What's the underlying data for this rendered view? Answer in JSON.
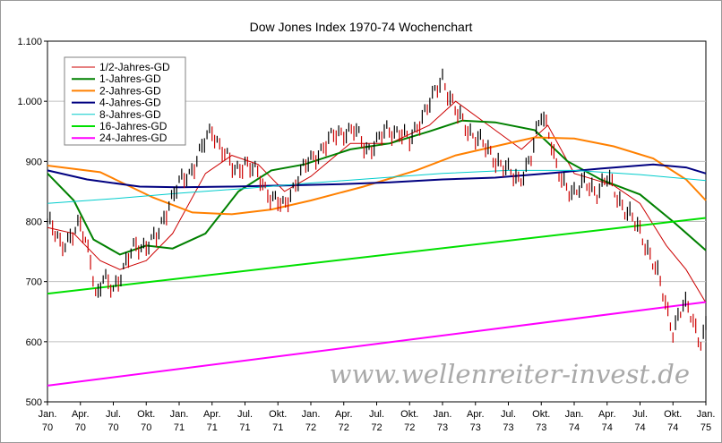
{
  "chart_data": {
    "type": "line",
    "title": "Dow Jones Index 1970-74 Wochenchart",
    "watermark": "www.wellenreiter-invest.de",
    "xlabel": "",
    "ylabel": "",
    "xlim": [
      1970.0,
      1975.0
    ],
    "ylim": [
      500,
      1100
    ],
    "y_ticks": [
      "500",
      "600",
      "700",
      "800",
      "900",
      "1.000",
      "1.100"
    ],
    "y_tick_values": [
      500,
      600,
      700,
      800,
      900,
      1000,
      1100
    ],
    "x_ticks": [
      {
        "month": "Jan.",
        "year": "70",
        "t": 1970.0
      },
      {
        "month": "Apr.",
        "year": "70",
        "t": 1970.25
      },
      {
        "month": "Jul.",
        "year": "70",
        "t": 1970.5
      },
      {
        "month": "Okt.",
        "year": "70",
        "t": 1970.75
      },
      {
        "month": "Jan.",
        "year": "71",
        "t": 1971.0
      },
      {
        "month": "Apr.",
        "year": "71",
        "t": 1971.25
      },
      {
        "month": "Jul.",
        "year": "71",
        "t": 1971.5
      },
      {
        "month": "Okt.",
        "year": "71",
        "t": 1971.75
      },
      {
        "month": "Jan.",
        "year": "72",
        "t": 1972.0
      },
      {
        "month": "Apr.",
        "year": "72",
        "t": 1972.25
      },
      {
        "month": "Jul.",
        "year": "72",
        "t": 1972.5
      },
      {
        "month": "Okt.",
        "year": "72",
        "t": 1972.75
      },
      {
        "month": "Jan.",
        "year": "73",
        "t": 1973.0
      },
      {
        "month": "Apr.",
        "year": "73",
        "t": 1973.25
      },
      {
        "month": "Jul.",
        "year": "73",
        "t": 1973.5
      },
      {
        "month": "Okt.",
        "year": "73",
        "t": 1973.75
      },
      {
        "month": "Jan.",
        "year": "74",
        "t": 1974.0
      },
      {
        "month": "Apr.",
        "year": "74",
        "t": 1974.25
      },
      {
        "month": "Jul.",
        "year": "74",
        "t": 1974.5
      },
      {
        "month": "Okt.",
        "year": "74",
        "t": 1974.75
      },
      {
        "month": "Jan.",
        "year": "75",
        "t": 1975.0
      }
    ],
    "grid": true,
    "legend_position": "top-left",
    "price_series": {
      "style": "weekly bars (high-low)",
      "color": "#000000",
      "down_color": "#cc0000",
      "x": [
        1970.0,
        1970.1,
        1970.2,
        1970.25,
        1970.33,
        1970.37,
        1970.42,
        1970.5,
        1970.58,
        1970.67,
        1970.75,
        1970.83,
        1970.92,
        1971.0,
        1971.08,
        1971.17,
        1971.25,
        1971.33,
        1971.42,
        1971.5,
        1971.58,
        1971.67,
        1971.75,
        1971.8,
        1971.85,
        1971.92,
        1972.0,
        1972.08,
        1972.17,
        1972.25,
        1972.33,
        1972.42,
        1972.5,
        1972.58,
        1972.67,
        1972.75,
        1972.83,
        1972.92,
        1973.0,
        1973.05,
        1973.1,
        1973.17,
        1973.25,
        1973.33,
        1973.42,
        1973.5,
        1973.58,
        1973.67,
        1973.75,
        1973.8,
        1973.87,
        1973.92,
        1974.0,
        1974.08,
        1974.17,
        1974.25,
        1974.33,
        1974.42,
        1974.5,
        1974.55,
        1974.62,
        1974.67,
        1974.72,
        1974.75,
        1974.83,
        1974.9,
        1974.95,
        1975.0
      ],
      "close": [
        800,
        760,
        780,
        790,
        740,
        670,
        700,
        690,
        720,
        760,
        760,
        770,
        830,
        860,
        880,
        920,
        950,
        920,
        880,
        900,
        880,
        850,
        830,
        820,
        850,
        880,
        900,
        920,
        940,
        950,
        950,
        920,
        930,
        950,
        950,
        930,
        970,
        1000,
        1040,
        1010,
        980,
        960,
        940,
        920,
        900,
        880,
        870,
        900,
        980,
        960,
        880,
        860,
        850,
        860,
        850,
        870,
        840,
        810,
        780,
        760,
        720,
        680,
        640,
        620,
        660,
        640,
        600,
        620
      ]
    },
    "series": [
      {
        "name": "1/2-Jahres-GD",
        "color": "#cc0000",
        "x": [
          1970.0,
          1970.2,
          1970.4,
          1970.55,
          1970.75,
          1970.95,
          1971.2,
          1971.4,
          1971.6,
          1971.8,
          1972.0,
          1972.3,
          1972.6,
          1972.9,
          1973.1,
          1973.35,
          1973.6,
          1973.8,
          1974.0,
          1974.3,
          1974.5,
          1974.7,
          1974.85,
          1975.0
        ],
        "y": [
          790,
          780,
          735,
          720,
          735,
          780,
          880,
          910,
          895,
          850,
          875,
          930,
          930,
          960,
          1000,
          960,
          920,
          960,
          880,
          860,
          830,
          760,
          720,
          665
        ]
      },
      {
        "name": "1-Jahres-GD",
        "color": "#008000",
        "x": [
          1970.0,
          1970.2,
          1970.35,
          1970.55,
          1970.75,
          1970.95,
          1971.2,
          1971.45,
          1971.7,
          1971.95,
          1972.3,
          1972.6,
          1972.9,
          1973.15,
          1973.4,
          1973.7,
          1973.95,
          1974.2,
          1974.5,
          1974.75,
          1975.0
        ],
        "y": [
          880,
          835,
          770,
          745,
          760,
          755,
          780,
          850,
          885,
          895,
          920,
          930,
          950,
          968,
          965,
          952,
          900,
          870,
          845,
          800,
          752
        ]
      },
      {
        "name": "2-Jahres-GD",
        "color": "#ff8000",
        "x": [
          1970.0,
          1970.4,
          1970.8,
          1971.1,
          1971.4,
          1971.7,
          1972.0,
          1972.4,
          1972.8,
          1973.1,
          1973.4,
          1973.7,
          1974.0,
          1974.3,
          1974.6,
          1974.85,
          1975.0
        ],
        "y": [
          893,
          882,
          840,
          815,
          812,
          820,
          835,
          858,
          885,
          910,
          925,
          940,
          938,
          925,
          905,
          870,
          835
        ]
      },
      {
        "name": "4-Jahres-GD",
        "color": "#000080",
        "x": [
          1970.0,
          1970.3,
          1970.7,
          1971.0,
          1971.4,
          1971.8,
          1972.2,
          1972.6,
          1973.0,
          1973.4,
          1973.8,
          1974.2,
          1974.6,
          1974.85,
          1975.0
        ],
        "y": [
          885,
          870,
          858,
          857,
          858,
          860,
          862,
          865,
          870,
          873,
          880,
          888,
          895,
          890,
          880
        ]
      },
      {
        "name": "8-Jahres-GD",
        "color": "#00cccc",
        "x": [
          1970.0,
          1970.5,
          1971.0,
          1971.5,
          1972.0,
          1972.5,
          1973.0,
          1973.5,
          1974.0,
          1974.5,
          1975.0
        ],
        "y": [
          830,
          838,
          847,
          855,
          864,
          872,
          880,
          885,
          885,
          878,
          868
        ]
      },
      {
        "name": "16-Jahres-GD",
        "color": "#00e000",
        "x": [
          1970.0,
          1975.0
        ],
        "y": [
          680,
          806
        ]
      },
      {
        "name": "24-Jahres-GD",
        "color": "#ff00ff",
        "x": [
          1970.0,
          1975.0
        ],
        "y": [
          527,
          666
        ]
      }
    ]
  }
}
